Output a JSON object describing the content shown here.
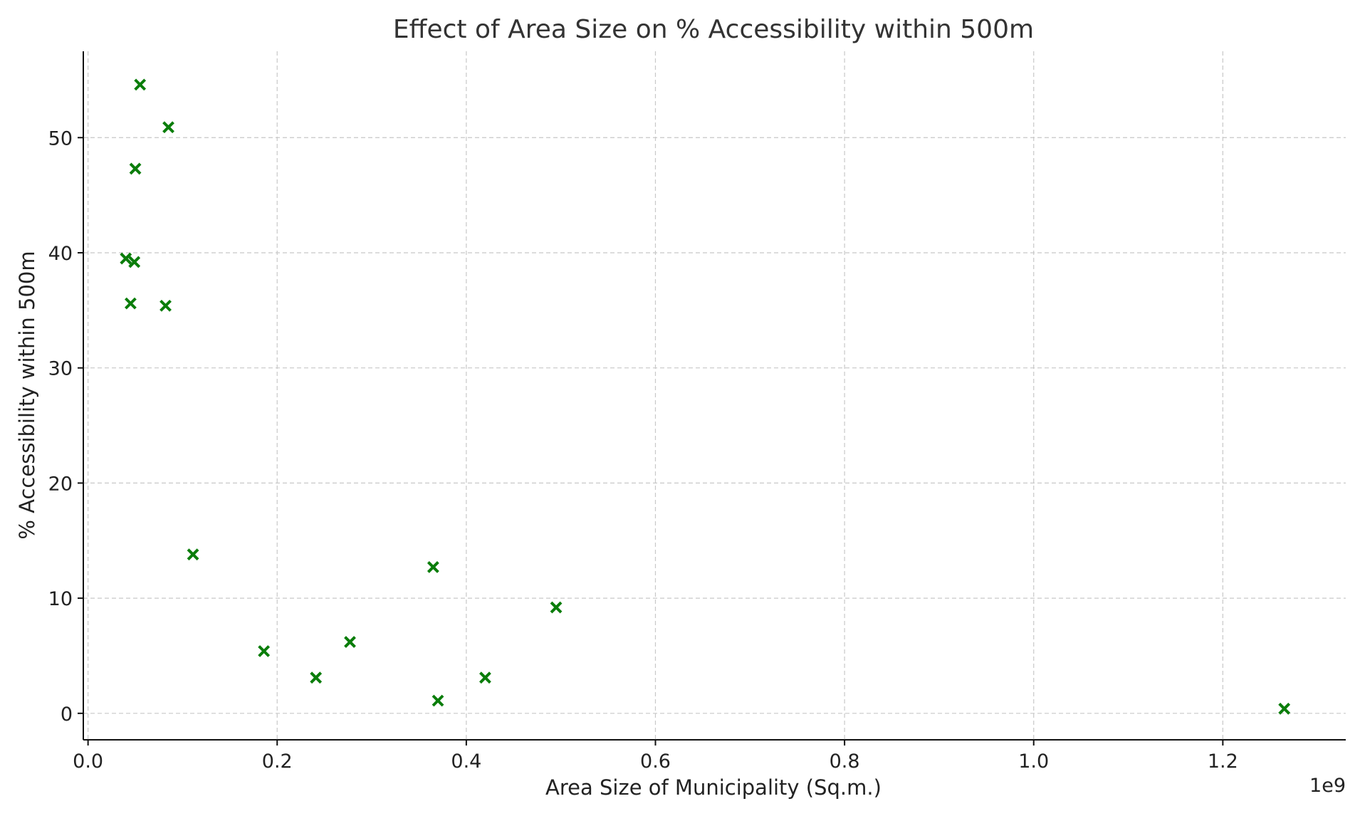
{
  "chart_data": {
    "type": "scatter",
    "title": "Effect of Area Size on % Accessibility within 500m",
    "xlabel": "Area Size of Municipality (Sq.m.)",
    "ylabel": "% Accessibility within 500m",
    "x_offset_label": "1e9",
    "xlim": [
      -0.005,
      1.33
    ],
    "ylim": [
      -2.3,
      57.5
    ],
    "xticks": [
      0.0,
      0.2,
      0.4,
      0.6,
      0.8,
      1.0,
      1.2
    ],
    "xtick_labels": [
      "0.0",
      "0.2",
      "0.4",
      "0.6",
      "0.8",
      "1.0",
      "1.2"
    ],
    "yticks": [
      0,
      10,
      20,
      30,
      40,
      50
    ],
    "ytick_labels": [
      "0",
      "10",
      "20",
      "30",
      "40",
      "50"
    ],
    "grid": true,
    "marker": "x",
    "color": "#0a7d0a",
    "series": [
      {
        "x": [
          0.055,
          0.085,
          0.05,
          0.04,
          0.049,
          0.045,
          0.082,
          0.111,
          0.186,
          0.241,
          0.277,
          0.365,
          0.37,
          0.42,
          0.495,
          1.265
        ],
        "y": [
          54.6,
          50.9,
          47.3,
          39.5,
          39.2,
          35.6,
          35.4,
          13.8,
          5.4,
          3.1,
          6.2,
          12.7,
          1.1,
          3.1,
          9.2,
          0.4
        ]
      }
    ]
  }
}
